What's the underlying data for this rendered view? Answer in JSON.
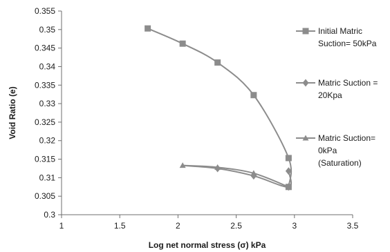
{
  "chart_data": {
    "type": "line",
    "title": "",
    "xlabel": "Log net normal stress (σ) kPa",
    "ylabel": "Void Ratio (e)",
    "xlim": [
      1,
      3.5
    ],
    "ylim": [
      0.3,
      0.355
    ],
    "x_ticks": [
      "1",
      "1.5",
      "2",
      "2.5",
      "3",
      "3.5"
    ],
    "y_ticks": [
      "0.3",
      "0.305",
      "0.31",
      "0.315",
      "0.32",
      "0.325",
      "0.33",
      "0.335",
      "0.34",
      "0.345",
      "0.35",
      "0.355"
    ],
    "grid": false,
    "legend_position": "right",
    "line_color": "#8c8c8c",
    "series": [
      {
        "name": [
          "Initial Matric",
          "Suction= 50kPa"
        ],
        "marker": "square",
        "points": [
          [
            1.74,
            0.3503
          ],
          [
            2.04,
            0.3462
          ],
          [
            2.34,
            0.3411
          ],
          [
            2.65,
            0.3323
          ],
          [
            2.95,
            0.3153
          ],
          [
            2.95,
            0.3075
          ]
        ]
      },
      {
        "name": [
          "Matric Suction =",
          "20Kpa"
        ],
        "marker": "diamond",
        "points": [
          [
            2.95,
            0.3118
          ],
          [
            2.95,
            0.3075
          ],
          [
            2.65,
            0.3105
          ],
          [
            2.34,
            0.3125
          ],
          [
            2.04,
            0.3133
          ]
        ]
      },
      {
        "name": [
          "Matric Suction=",
          "0kPa",
          "(Saturation)"
        ],
        "marker": "triangle",
        "points": [
          [
            2.04,
            0.3133
          ],
          [
            2.34,
            0.3128
          ],
          [
            2.65,
            0.3112
          ],
          [
            2.95,
            0.3075
          ]
        ]
      }
    ]
  }
}
